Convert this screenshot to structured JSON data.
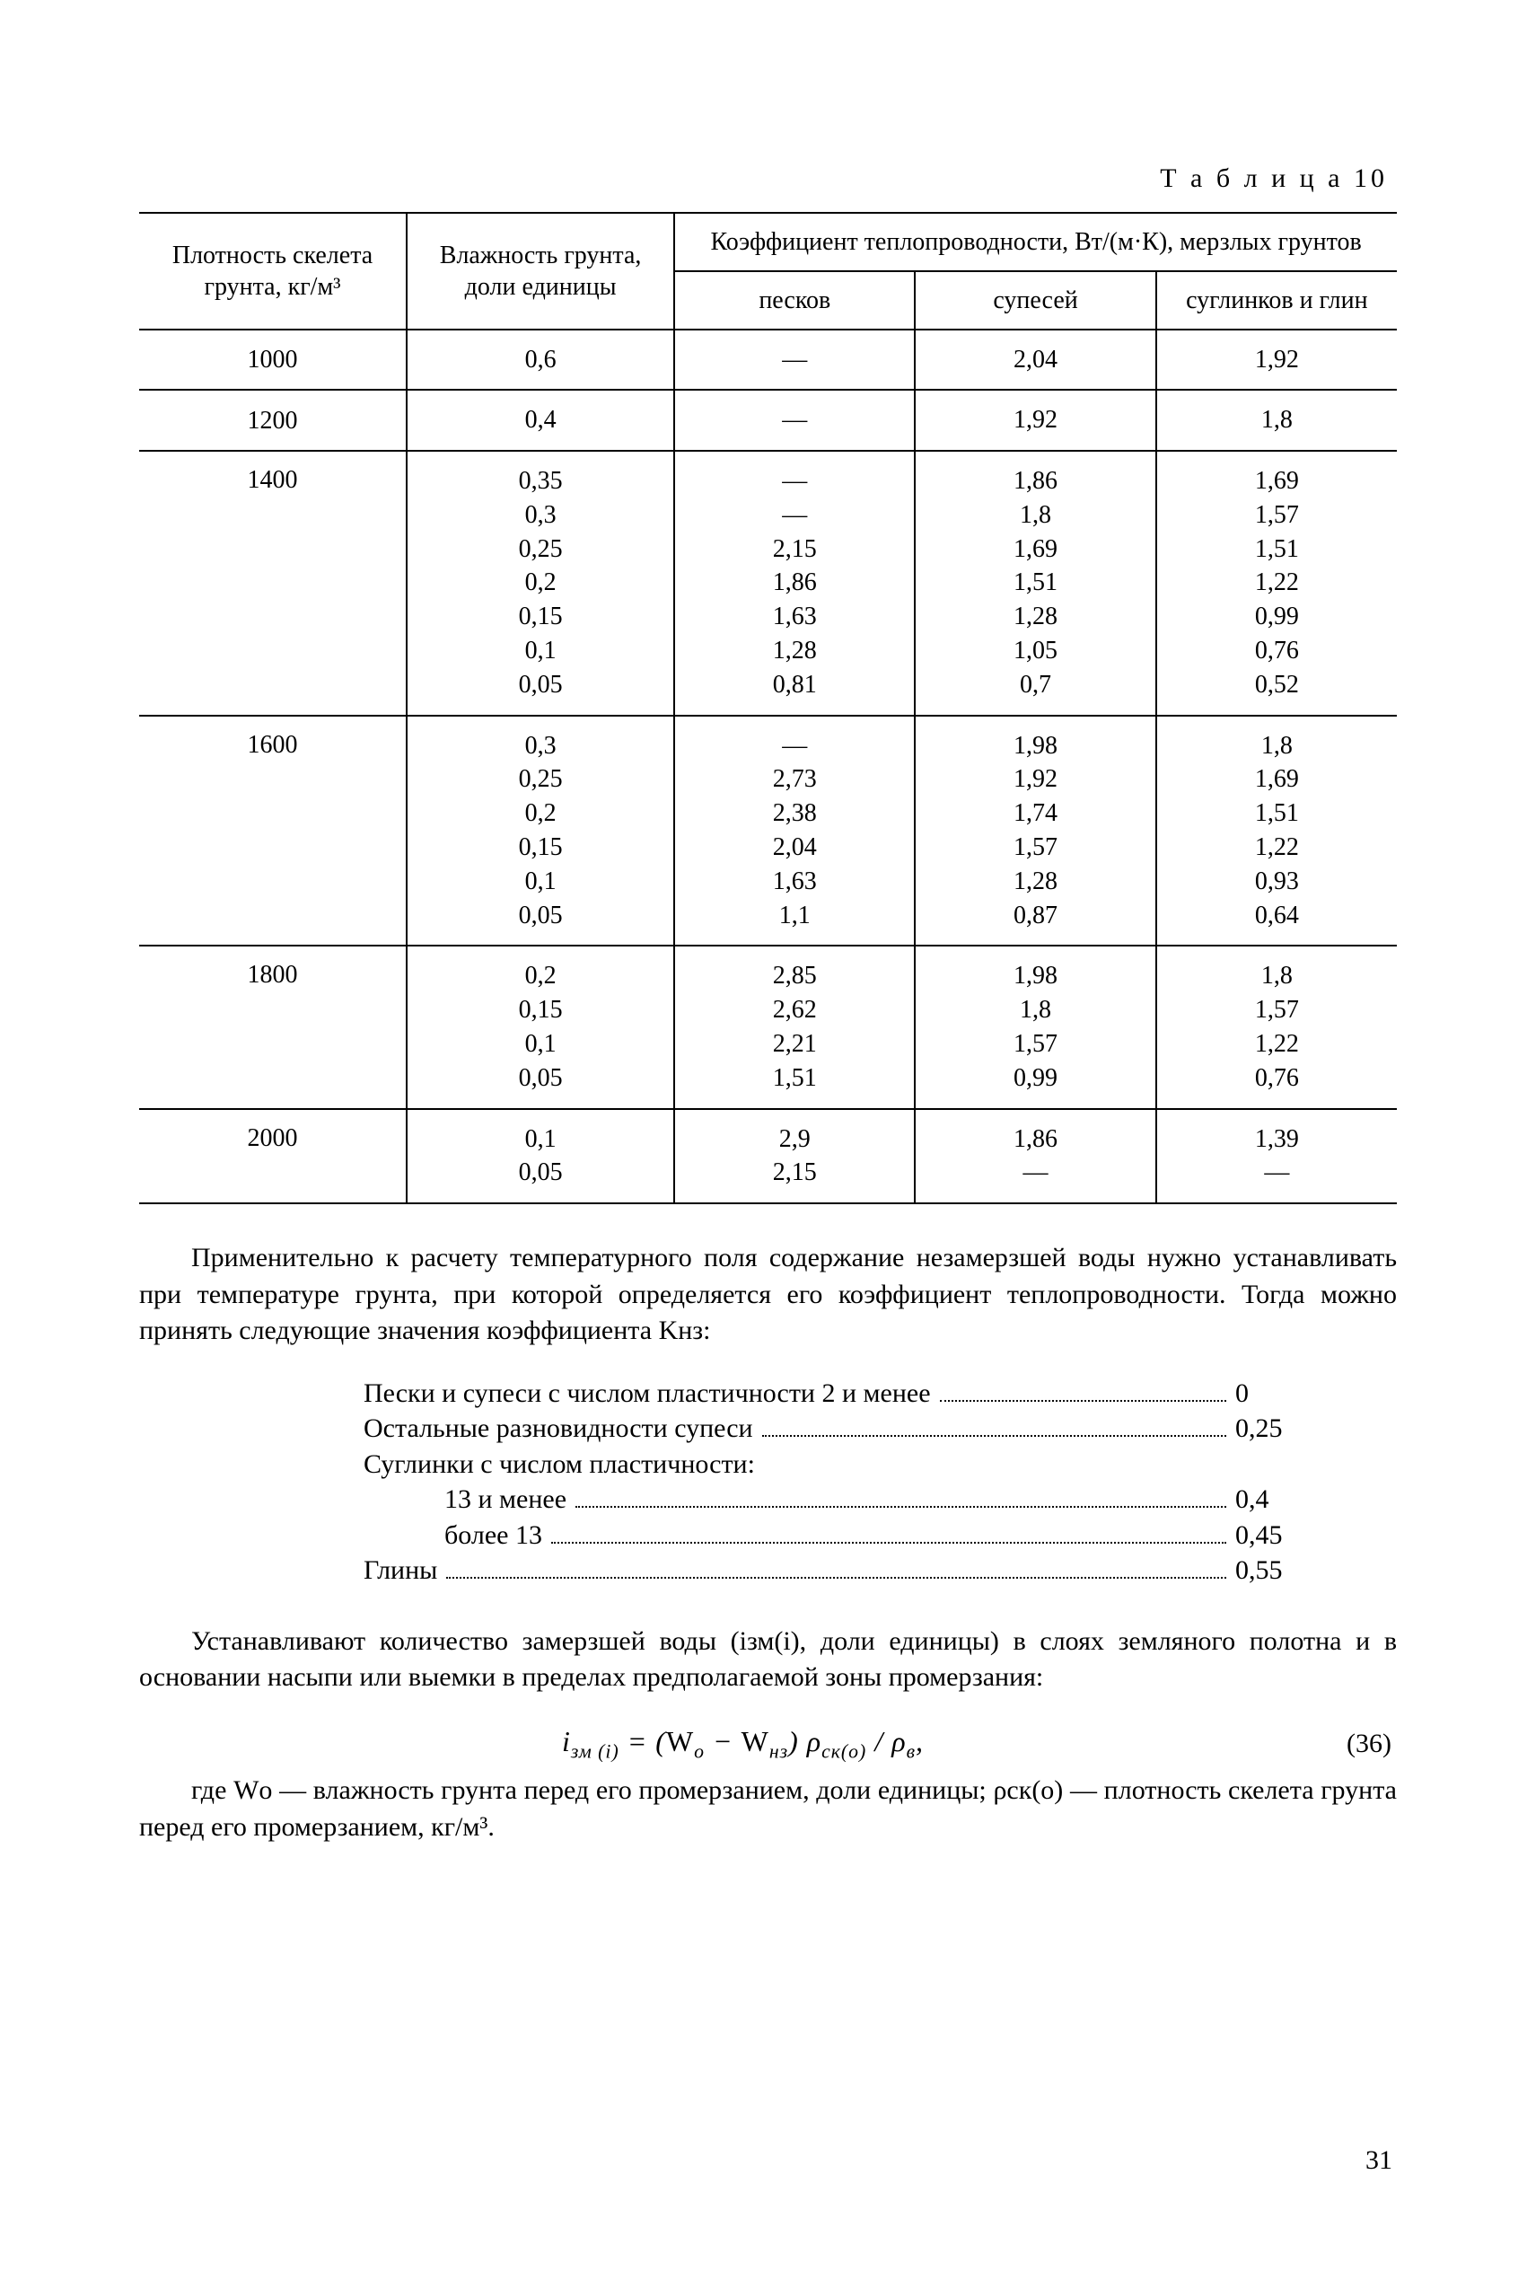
{
  "table_label": "Т а б л и ц а  10",
  "headers": {
    "col1": "Плотность скелета грунта, кг/м³",
    "col2": "Влажность грунта, доли единицы",
    "group_top": "Коэффициент теплопроводности, Вт/(м·К), мерзлых грунтов",
    "sub1": "песков",
    "sub2": "супесей",
    "sub3": "суглинков и глин"
  },
  "rows": [
    {
      "density": "1000",
      "moist": [
        "0,6"
      ],
      "sand": [
        "—"
      ],
      "sandy_loam": [
        "2,04"
      ],
      "loam_clay": [
        "1,92"
      ]
    },
    {
      "density": "1200",
      "moist": [
        "0,4"
      ],
      "sand": [
        "—"
      ],
      "sandy_loam": [
        "1,92"
      ],
      "loam_clay": [
        "1,8"
      ]
    },
    {
      "density": "1400",
      "moist": [
        "0,35",
        "0,3",
        "0,25",
        "0,2",
        "0,15",
        "0,1",
        "0,05"
      ],
      "sand": [
        "—",
        "—",
        "2,15",
        "1,86",
        "1,63",
        "1,28",
        "0,81"
      ],
      "sandy_loam": [
        "1,86",
        "1,8",
        "1,69",
        "1,51",
        "1,28",
        "1,05",
        "0,7"
      ],
      "loam_clay": [
        "1,69",
        "1,57",
        "1,51",
        "1,22",
        "0,99",
        "0,76",
        "0,52"
      ]
    },
    {
      "density": "1600",
      "moist": [
        "0,3",
        "0,25",
        "0,2",
        "0,15",
        "0,1",
        "0,05"
      ],
      "sand": [
        "—",
        "2,73",
        "2,38",
        "2,04",
        "1,63",
        "1,1"
      ],
      "sandy_loam": [
        "1,98",
        "1,92",
        "1,74",
        "1,57",
        "1,28",
        "0,87"
      ],
      "loam_clay": [
        "1,8",
        "1,69",
        "1,51",
        "1,22",
        "0,93",
        "0,64"
      ]
    },
    {
      "density": "1800",
      "moist": [
        "0,2",
        "0,15",
        "0,1",
        "0,05"
      ],
      "sand": [
        "2,85",
        "2,62",
        "2,21",
        "1,51"
      ],
      "sandy_loam": [
        "1,98",
        "1,8",
        "1,57",
        "0,99"
      ],
      "loam_clay": [
        "1,8",
        "1,57",
        "1,22",
        "0,76"
      ]
    },
    {
      "density": "2000",
      "moist": [
        "0,1",
        "0,05"
      ],
      "sand": [
        "2,9",
        "2,15"
      ],
      "sandy_loam": [
        "1,86",
        "—"
      ],
      "loam_clay": [
        "1,39",
        "—"
      ]
    }
  ],
  "para1": "Применительно к расчету температурного поля содержание незамерзшей воды нужно устанавливать при температуре грунта, при которой определяется его коэффициент теплопроводности. Тогда можно принять следующие значения коэффициента Kнз:",
  "coef_items": [
    {
      "label": "Пески и супеси с числом пластичности 2 и менее",
      "value": "0",
      "indent": false
    },
    {
      "label": "Остальные разновидности супеси",
      "value": "0,25",
      "indent": false
    },
    {
      "label": "Суглинки с числом пластичности:",
      "value": "",
      "indent": false,
      "nodots": true
    },
    {
      "label": "13 и менее",
      "value": "0,4",
      "indent": true
    },
    {
      "label": "более 13",
      "value": "0,45",
      "indent": true
    },
    {
      "label": "Глины",
      "value": "0,55",
      "indent": false
    }
  ],
  "para2": "Устанавливают количество замерзшей воды (iзм(i), доли единицы) в слоях земляного полотна и в основании насыпи или выемки в пределах предполагаемой зоны промерзания:",
  "formula_html": "i<sub>зм (i)</sub> = (<span class='up'>W</span><sub>о</sub> − <span class='up'>W</span><sub>нз</sub>) ρ<sub>ск(о)</sub> / ρ<sub>в</sub>,",
  "eq_num": "(36)",
  "para3": "где Wо — влажность грунта перед его промерзанием, доли единицы;  ρск(о) — плотность скелета грунта перед его промерзанием, кг/м³.",
  "page_number": "31"
}
